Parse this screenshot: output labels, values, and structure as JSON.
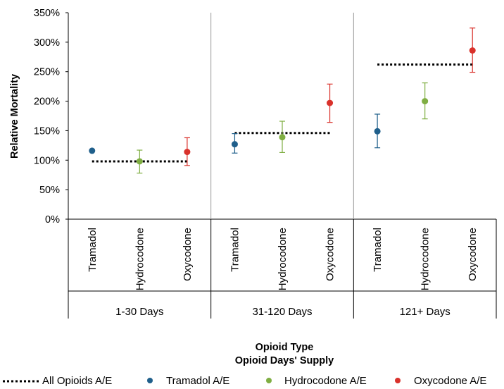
{
  "chart_data": {
    "type": "scatter",
    "ylabel": "Relative Mortality",
    "xlabel_lines": [
      "Opioid Type",
      "Opioid Days' Supply"
    ],
    "ylim": [
      0,
      3.5
    ],
    "yticks": [
      "0%",
      "50%",
      "100%",
      "150%",
      "200%",
      "250%",
      "300%",
      "350%"
    ],
    "grid": false,
    "legend_position": "bottom",
    "groups": [
      "1-30 Days",
      "31-120 Days",
      "121+ Days"
    ],
    "categories": [
      "Tramadol",
      "Hydrocodone",
      "Oxycodone"
    ],
    "series": [
      {
        "name": "Tramadol A/E",
        "color": "#1f5f8b",
        "marker": "circle",
        "category": "Tramadol",
        "points": [
          {
            "group": "1-30 Days",
            "value": 1.16,
            "low": 1.15,
            "high": 1.18
          },
          {
            "group": "31-120 Days",
            "value": 1.27,
            "low": 1.12,
            "high": 1.45
          },
          {
            "group": "121+ Days",
            "value": 1.49,
            "low": 1.21,
            "high": 1.78
          }
        ]
      },
      {
        "name": "Hydrocodone A/E",
        "color": "#7fae42",
        "marker": "circle",
        "category": "Hydrocodone",
        "points": [
          {
            "group": "1-30 Days",
            "value": 0.98,
            "low": 0.78,
            "high": 1.17
          },
          {
            "group": "31-120 Days",
            "value": 1.39,
            "low": 1.13,
            "high": 1.66
          },
          {
            "group": "121+ Days",
            "value": 2.0,
            "low": 1.7,
            "high": 2.31
          }
        ]
      },
      {
        "name": "Oxycodone A/E",
        "color": "#d9312b",
        "marker": "circle",
        "category": "Oxycodone",
        "points": [
          {
            "group": "1-30 Days",
            "value": 1.14,
            "low": 0.91,
            "high": 1.38
          },
          {
            "group": "31-120 Days",
            "value": 1.97,
            "low": 1.64,
            "high": 2.29
          },
          {
            "group": "121+ Days",
            "value": 2.86,
            "low": 2.49,
            "high": 3.24
          }
        ]
      },
      {
        "name": "All Opioids A/E",
        "color": "#000000",
        "marker": "dotted-line",
        "points": [
          {
            "group": "1-30 Days",
            "value": 0.98
          },
          {
            "group": "31-120 Days",
            "value": 1.46
          },
          {
            "group": "121+ Days",
            "value": 2.62
          }
        ]
      }
    ],
    "legend_order": [
      "All Opioids A/E",
      "Tramadol A/E",
      "Hydrocodone A/E",
      "Oxycodone A/E"
    ]
  }
}
